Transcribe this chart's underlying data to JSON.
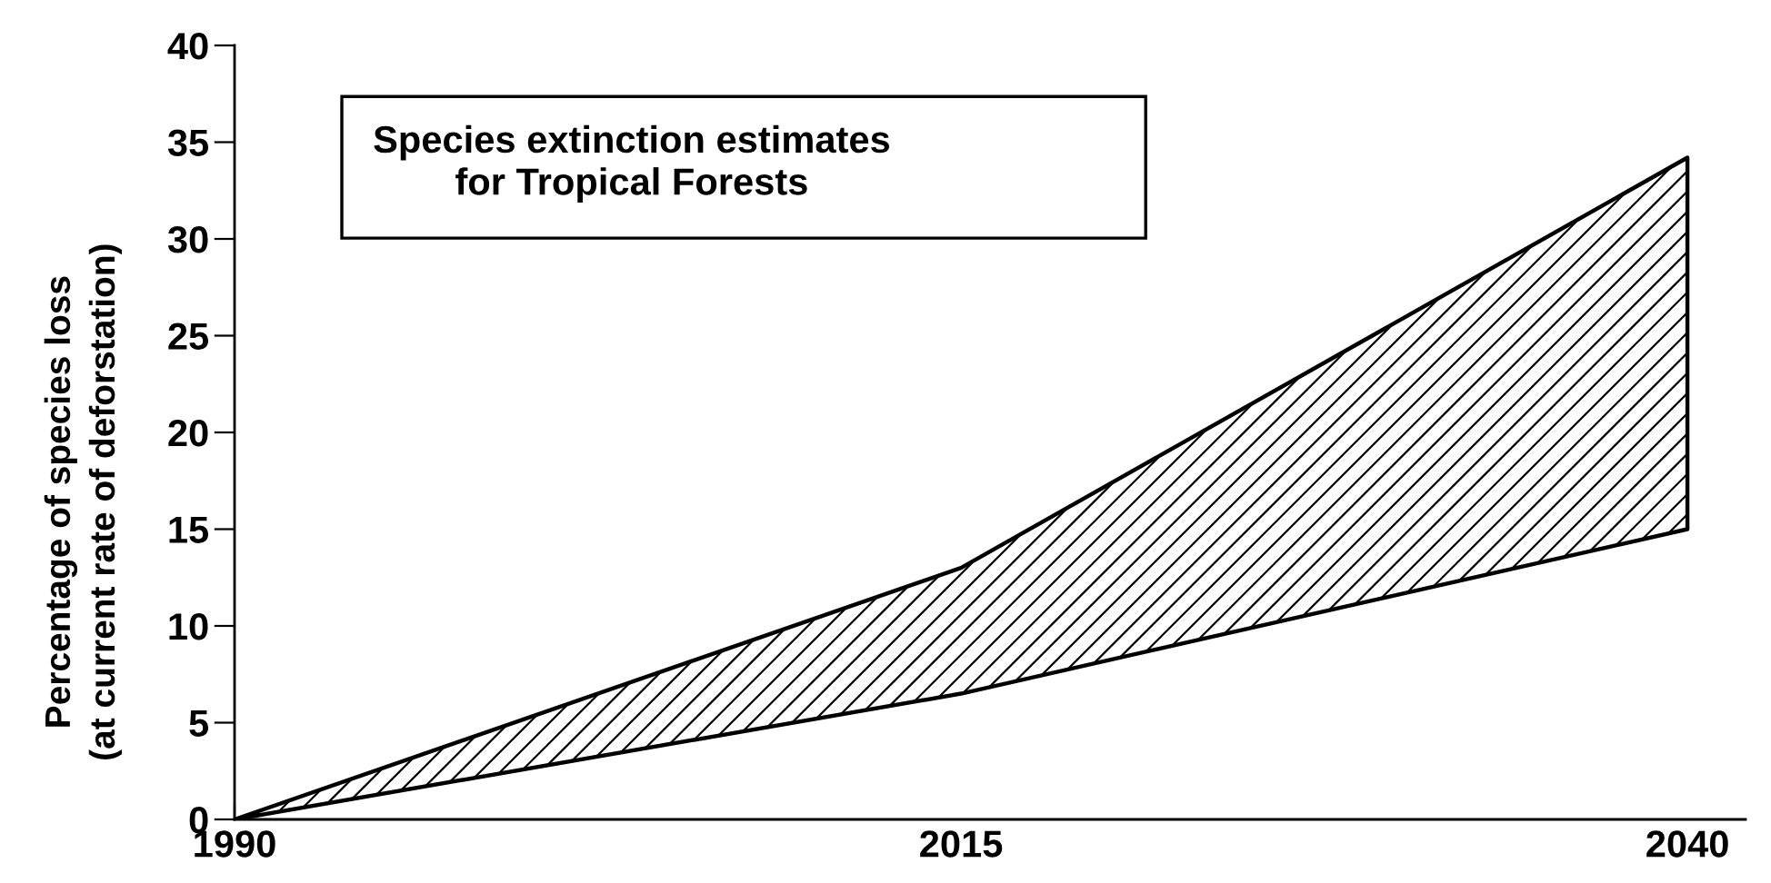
{
  "chart_data": {
    "type": "area",
    "stacked": true,
    "title": "Species extinction estimates\nfor Tropical Forests",
    "ylabel": "Percentage of species loss\n(at current rate of deforstation)",
    "x": [
      1990,
      2015,
      2040
    ],
    "series": [
      {
        "color": "#ffffff",
        "values": [
          0,
          6.5,
          15
        ]
      },
      {
        "color": "#000000",
        "values": [
          0,
          6.5,
          19.2
        ]
      }
    ],
    "xlim": [
      1990,
      2042
    ],
    "xticks": [
      1990,
      2015,
      2040
    ],
    "ylim": [
      0,
      40
    ],
    "yticks": [
      0,
      5,
      10,
      15,
      20,
      25,
      30,
      35,
      40
    ]
  }
}
